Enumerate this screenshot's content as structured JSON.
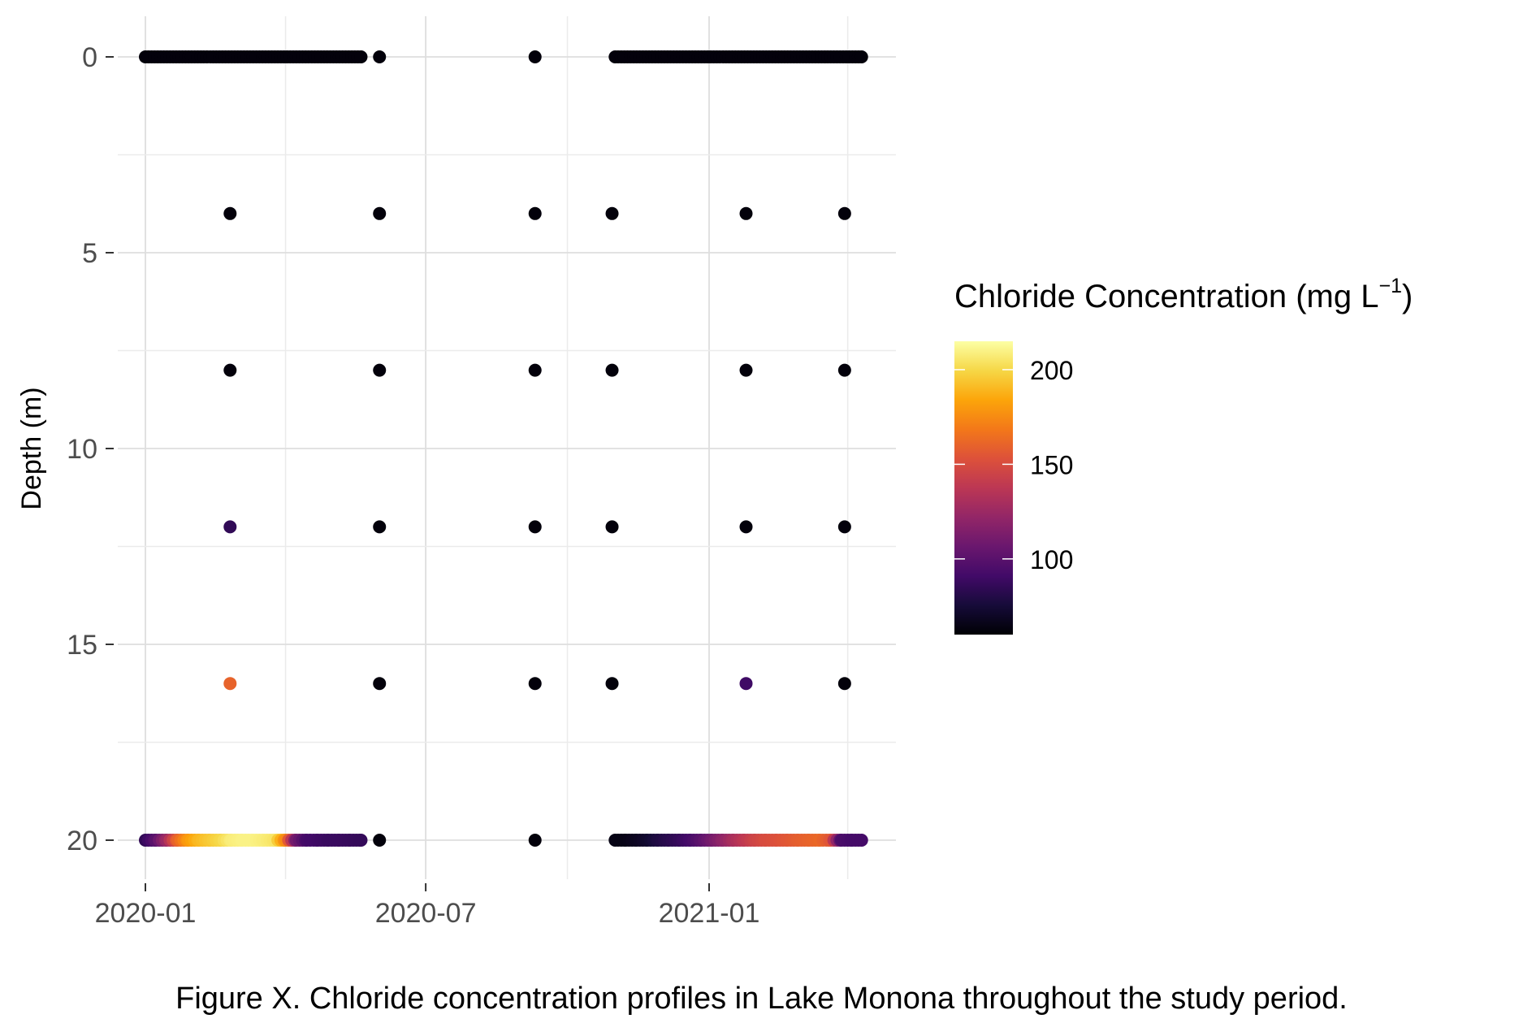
{
  "caption": "Figure X. Chloride concentration profiles in Lake Monona throughout the study period.",
  "chart_data": {
    "type": "scatter",
    "title": "",
    "xlabel": "",
    "ylabel": "Depth (m)",
    "x_type": "date",
    "xlim": [
      "2019-12-10",
      "2021-04-25"
    ],
    "ylim": [
      0,
      21
    ],
    "y_reversed": true,
    "x_ticks": [
      {
        "value": "2020-01-01",
        "label": "2020-01"
      },
      {
        "value": "2020-07-01",
        "label": "2020-07"
      },
      {
        "value": "2021-01-01",
        "label": "2021-01"
      }
    ],
    "y_ticks": [
      0,
      5,
      10,
      15,
      20
    ],
    "grid": true,
    "color_legend": {
      "title_prefix": "Chloride Concentration (mg L",
      "title_sup": "−1",
      "title_suffix": ")",
      "palette": "inferno",
      "range": [
        60,
        215
      ],
      "ticks": [
        100,
        150,
        200
      ]
    },
    "points": [
      {
        "series": "surface_2020",
        "depth": 0,
        "start": "2020-01-01",
        "end": "2020-05-20",
        "value": 62
      },
      {
        "series": "surface_2021",
        "depth": 0,
        "start": "2020-11-01",
        "end": "2021-04-10",
        "value": 62
      },
      {
        "date": "2020-06-01",
        "depth": 0,
        "value": 62
      },
      {
        "date": "2020-09-10",
        "depth": 0,
        "value": 62
      },
      {
        "date": "2020-02-25",
        "depth": 4,
        "value": 62
      },
      {
        "date": "2020-06-01",
        "depth": 4,
        "value": 62
      },
      {
        "date": "2020-09-10",
        "depth": 4,
        "value": 62
      },
      {
        "date": "2020-10-30",
        "depth": 4,
        "value": 62
      },
      {
        "date": "2021-01-25",
        "depth": 4,
        "value": 62
      },
      {
        "date": "2021-03-30",
        "depth": 4,
        "value": 62
      },
      {
        "date": "2020-02-25",
        "depth": 8,
        "value": 62
      },
      {
        "date": "2020-06-01",
        "depth": 8,
        "value": 62
      },
      {
        "date": "2020-09-10",
        "depth": 8,
        "value": 62
      },
      {
        "date": "2020-10-30",
        "depth": 8,
        "value": 62
      },
      {
        "date": "2021-01-25",
        "depth": 8,
        "value": 62
      },
      {
        "date": "2021-03-30",
        "depth": 8,
        "value": 62
      },
      {
        "date": "2020-02-25",
        "depth": 12,
        "value": 85
      },
      {
        "date": "2020-06-01",
        "depth": 12,
        "value": 62
      },
      {
        "date": "2020-09-10",
        "depth": 12,
        "value": 62
      },
      {
        "date": "2020-10-30",
        "depth": 12,
        "value": 62
      },
      {
        "date": "2021-01-25",
        "depth": 12,
        "value": 62
      },
      {
        "date": "2021-03-30",
        "depth": 12,
        "value": 62
      },
      {
        "date": "2020-02-25",
        "depth": 16,
        "value": 160
      },
      {
        "date": "2020-06-01",
        "depth": 16,
        "value": 62
      },
      {
        "date": "2020-09-10",
        "depth": 16,
        "value": 62
      },
      {
        "date": "2020-10-30",
        "depth": 16,
        "value": 62
      },
      {
        "date": "2021-01-25",
        "depth": 16,
        "value": 90
      },
      {
        "date": "2021-03-30",
        "depth": 16,
        "value": 62
      },
      {
        "date": "2020-06-01",
        "depth": 20,
        "value": 62
      },
      {
        "date": "2020-09-10",
        "depth": 20,
        "value": 62
      }
    ],
    "bottom_series": [
      {
        "name": "bottom_2020",
        "depth": 20,
        "values": [
          {
            "date": "2020-01-01",
            "value": 85
          },
          {
            "date": "2020-01-08",
            "value": 100
          },
          {
            "date": "2020-01-15",
            "value": 125
          },
          {
            "date": "2020-01-22",
            "value": 160
          },
          {
            "date": "2020-01-29",
            "value": 180
          },
          {
            "date": "2020-02-05",
            "value": 190
          },
          {
            "date": "2020-02-12",
            "value": 195
          },
          {
            "date": "2020-02-19",
            "value": 200
          },
          {
            "date": "2020-02-26",
            "value": 208
          },
          {
            "date": "2020-03-04",
            "value": 210
          },
          {
            "date": "2020-03-11",
            "value": 210
          },
          {
            "date": "2020-03-18",
            "value": 208
          },
          {
            "date": "2020-03-25",
            "value": 205
          },
          {
            "date": "2020-04-01",
            "value": 175
          },
          {
            "date": "2020-04-08",
            "value": 110
          },
          {
            "date": "2020-04-15",
            "value": 92
          },
          {
            "date": "2020-04-22",
            "value": 90
          },
          {
            "date": "2020-04-29",
            "value": 88
          },
          {
            "date": "2020-05-06",
            "value": 88
          },
          {
            "date": "2020-05-13",
            "value": 87
          },
          {
            "date": "2020-05-20",
            "value": 86
          }
        ]
      },
      {
        "name": "bottom_2021",
        "depth": 20,
        "values": [
          {
            "date": "2020-11-01",
            "value": 65
          },
          {
            "date": "2020-11-08",
            "value": 65
          },
          {
            "date": "2020-11-15",
            "value": 68
          },
          {
            "date": "2020-11-22",
            "value": 72
          },
          {
            "date": "2020-11-29",
            "value": 78
          },
          {
            "date": "2020-12-06",
            "value": 82
          },
          {
            "date": "2020-12-13",
            "value": 86
          },
          {
            "date": "2020-12-20",
            "value": 92
          },
          {
            "date": "2020-12-27",
            "value": 100
          },
          {
            "date": "2021-01-03",
            "value": 110
          },
          {
            "date": "2021-01-10",
            "value": 120
          },
          {
            "date": "2021-01-17",
            "value": 130
          },
          {
            "date": "2021-01-24",
            "value": 138
          },
          {
            "date": "2021-01-31",
            "value": 145
          },
          {
            "date": "2021-02-07",
            "value": 150
          },
          {
            "date": "2021-02-14",
            "value": 152
          },
          {
            "date": "2021-02-21",
            "value": 155
          },
          {
            "date": "2021-02-28",
            "value": 158
          },
          {
            "date": "2021-03-07",
            "value": 160
          },
          {
            "date": "2021-03-14",
            "value": 162
          },
          {
            "date": "2021-03-21",
            "value": 155
          },
          {
            "date": "2021-03-28",
            "value": 95
          },
          {
            "date": "2021-04-04",
            "value": 92
          },
          {
            "date": "2021-04-10",
            "value": 92
          }
        ]
      }
    ]
  }
}
